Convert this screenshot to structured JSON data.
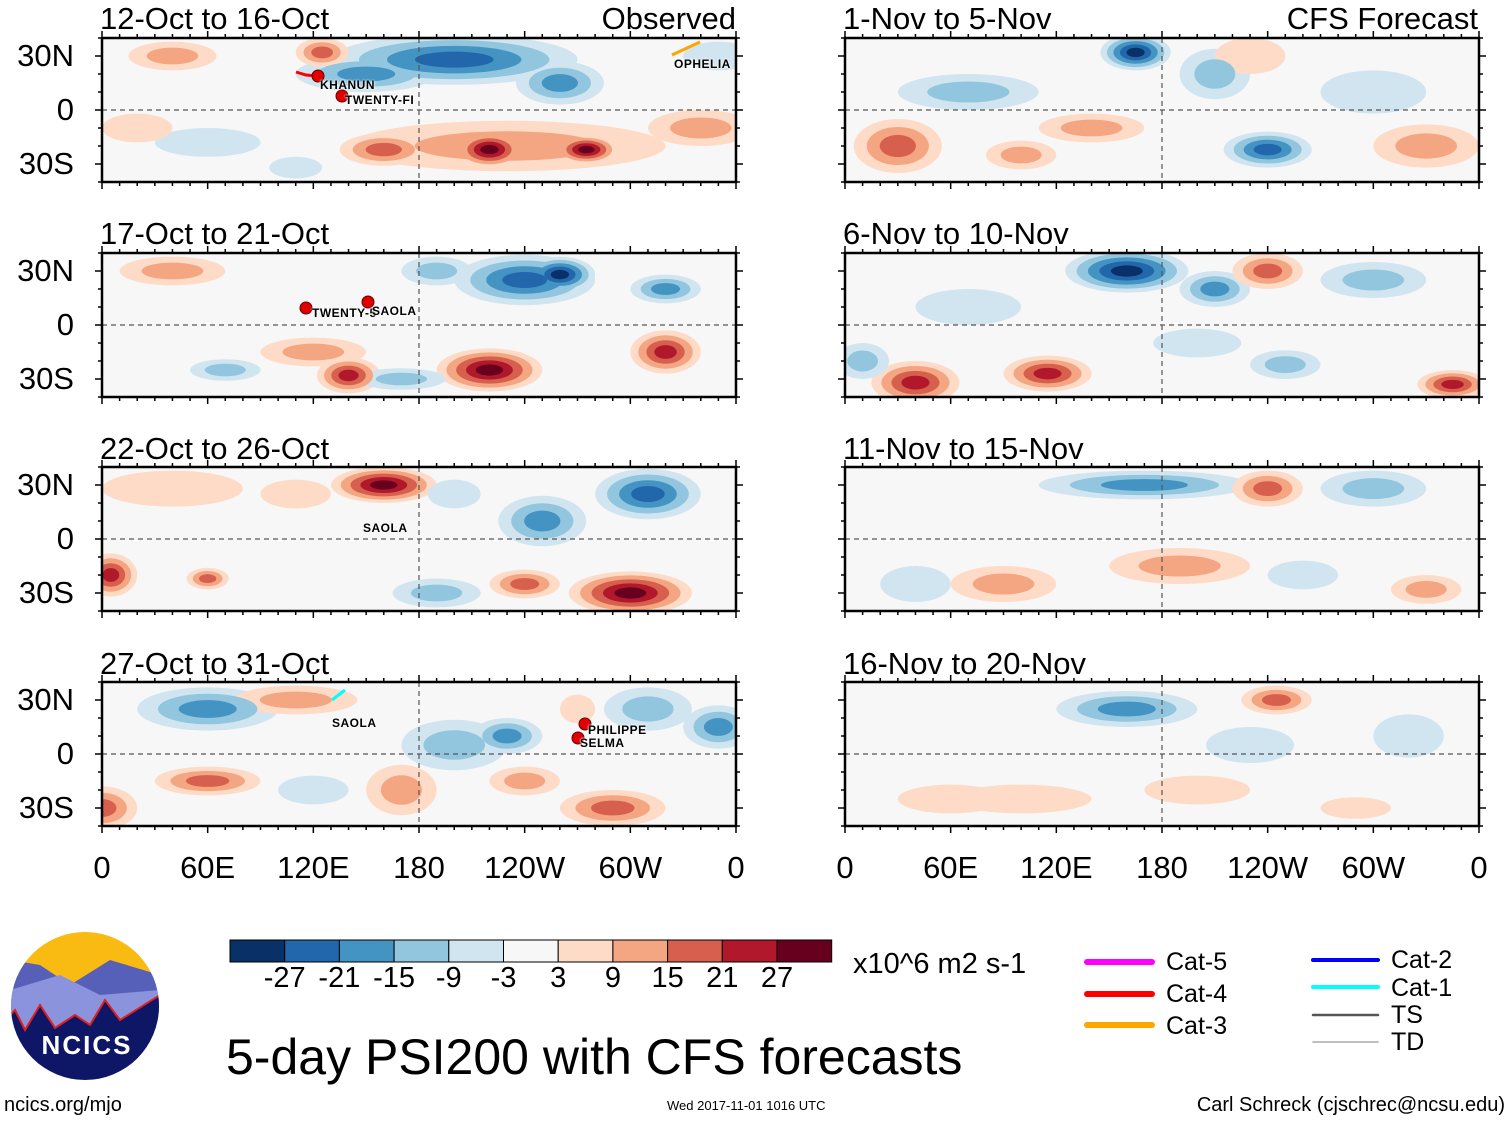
{
  "figure": {
    "title": "5-day PSI200 with CFS forecasts",
    "left_header": "Observed",
    "right_header": "CFS Forecast",
    "site": "ncics.org/mjo",
    "timestamp": "Wed 2017-11-01 1016 UTC",
    "author": "Carl Schreck (cjschrec@ncsu.edu)",
    "logo_text": "NCICS"
  },
  "chart_data": {
    "type": "heatmap",
    "variable": "5-day PSI200 anomaly",
    "units": "x10^6 m2 s-1",
    "lat_ticks": [
      "30N",
      "0",
      "30S"
    ],
    "lon_ticks": [
      "0",
      "60E",
      "120E",
      "180",
      "120W",
      "60W",
      "0"
    ],
    "lat_range": [
      -40,
      40
    ],
    "lon_range": [
      0,
      360
    ],
    "colorbar": {
      "ticks": [
        "-27",
        "-21",
        "-15",
        "-9",
        "-3",
        "3",
        "9",
        "15",
        "21",
        "27"
      ],
      "colors": [
        "#0a3068",
        "#2266ac",
        "#4393c3",
        "#92c5de",
        "#d1e5f0",
        "#f7f7f7",
        "#fddbc7",
        "#f4a582",
        "#d6604d",
        "#b2182b",
        "#67001f"
      ]
    },
    "panels": [
      {
        "title": "12-Oct to 16-Oct",
        "kind": "observed"
      },
      {
        "title": "17-Oct to 21-Oct",
        "kind": "observed"
      },
      {
        "title": "22-Oct to 26-Oct",
        "kind": "observed"
      },
      {
        "title": "27-Oct to 31-Oct",
        "kind": "observed"
      },
      {
        "title": "1-Nov to 5-Nov",
        "kind": "forecast"
      },
      {
        "title": "6-Nov to 10-Nov",
        "kind": "forecast"
      },
      {
        "title": "11-Nov to 15-Nov",
        "kind": "forecast"
      },
      {
        "title": "16-Nov to 20-Nov",
        "kind": "forecast"
      }
    ],
    "storms": [
      "KHANUN",
      "TWENTY-FI",
      "OPHELIA",
      "TWENTY-5",
      "SAOLA",
      "SAOLA",
      "SAOLA",
      "PHILIPPE",
      "SELMA"
    ],
    "track_legend": [
      {
        "label": "Cat-5",
        "color": "#ff00ff"
      },
      {
        "label": "Cat-4",
        "color": "#ff0000"
      },
      {
        "label": "Cat-3",
        "color": "#ffa500"
      },
      {
        "label": "Cat-2",
        "color": "#0000ff"
      },
      {
        "label": "Cat-1",
        "color": "#00ffff"
      },
      {
        "label": "TS",
        "color": "#555555"
      },
      {
        "label": "TD",
        "color": "#aaaaaa"
      }
    ]
  }
}
